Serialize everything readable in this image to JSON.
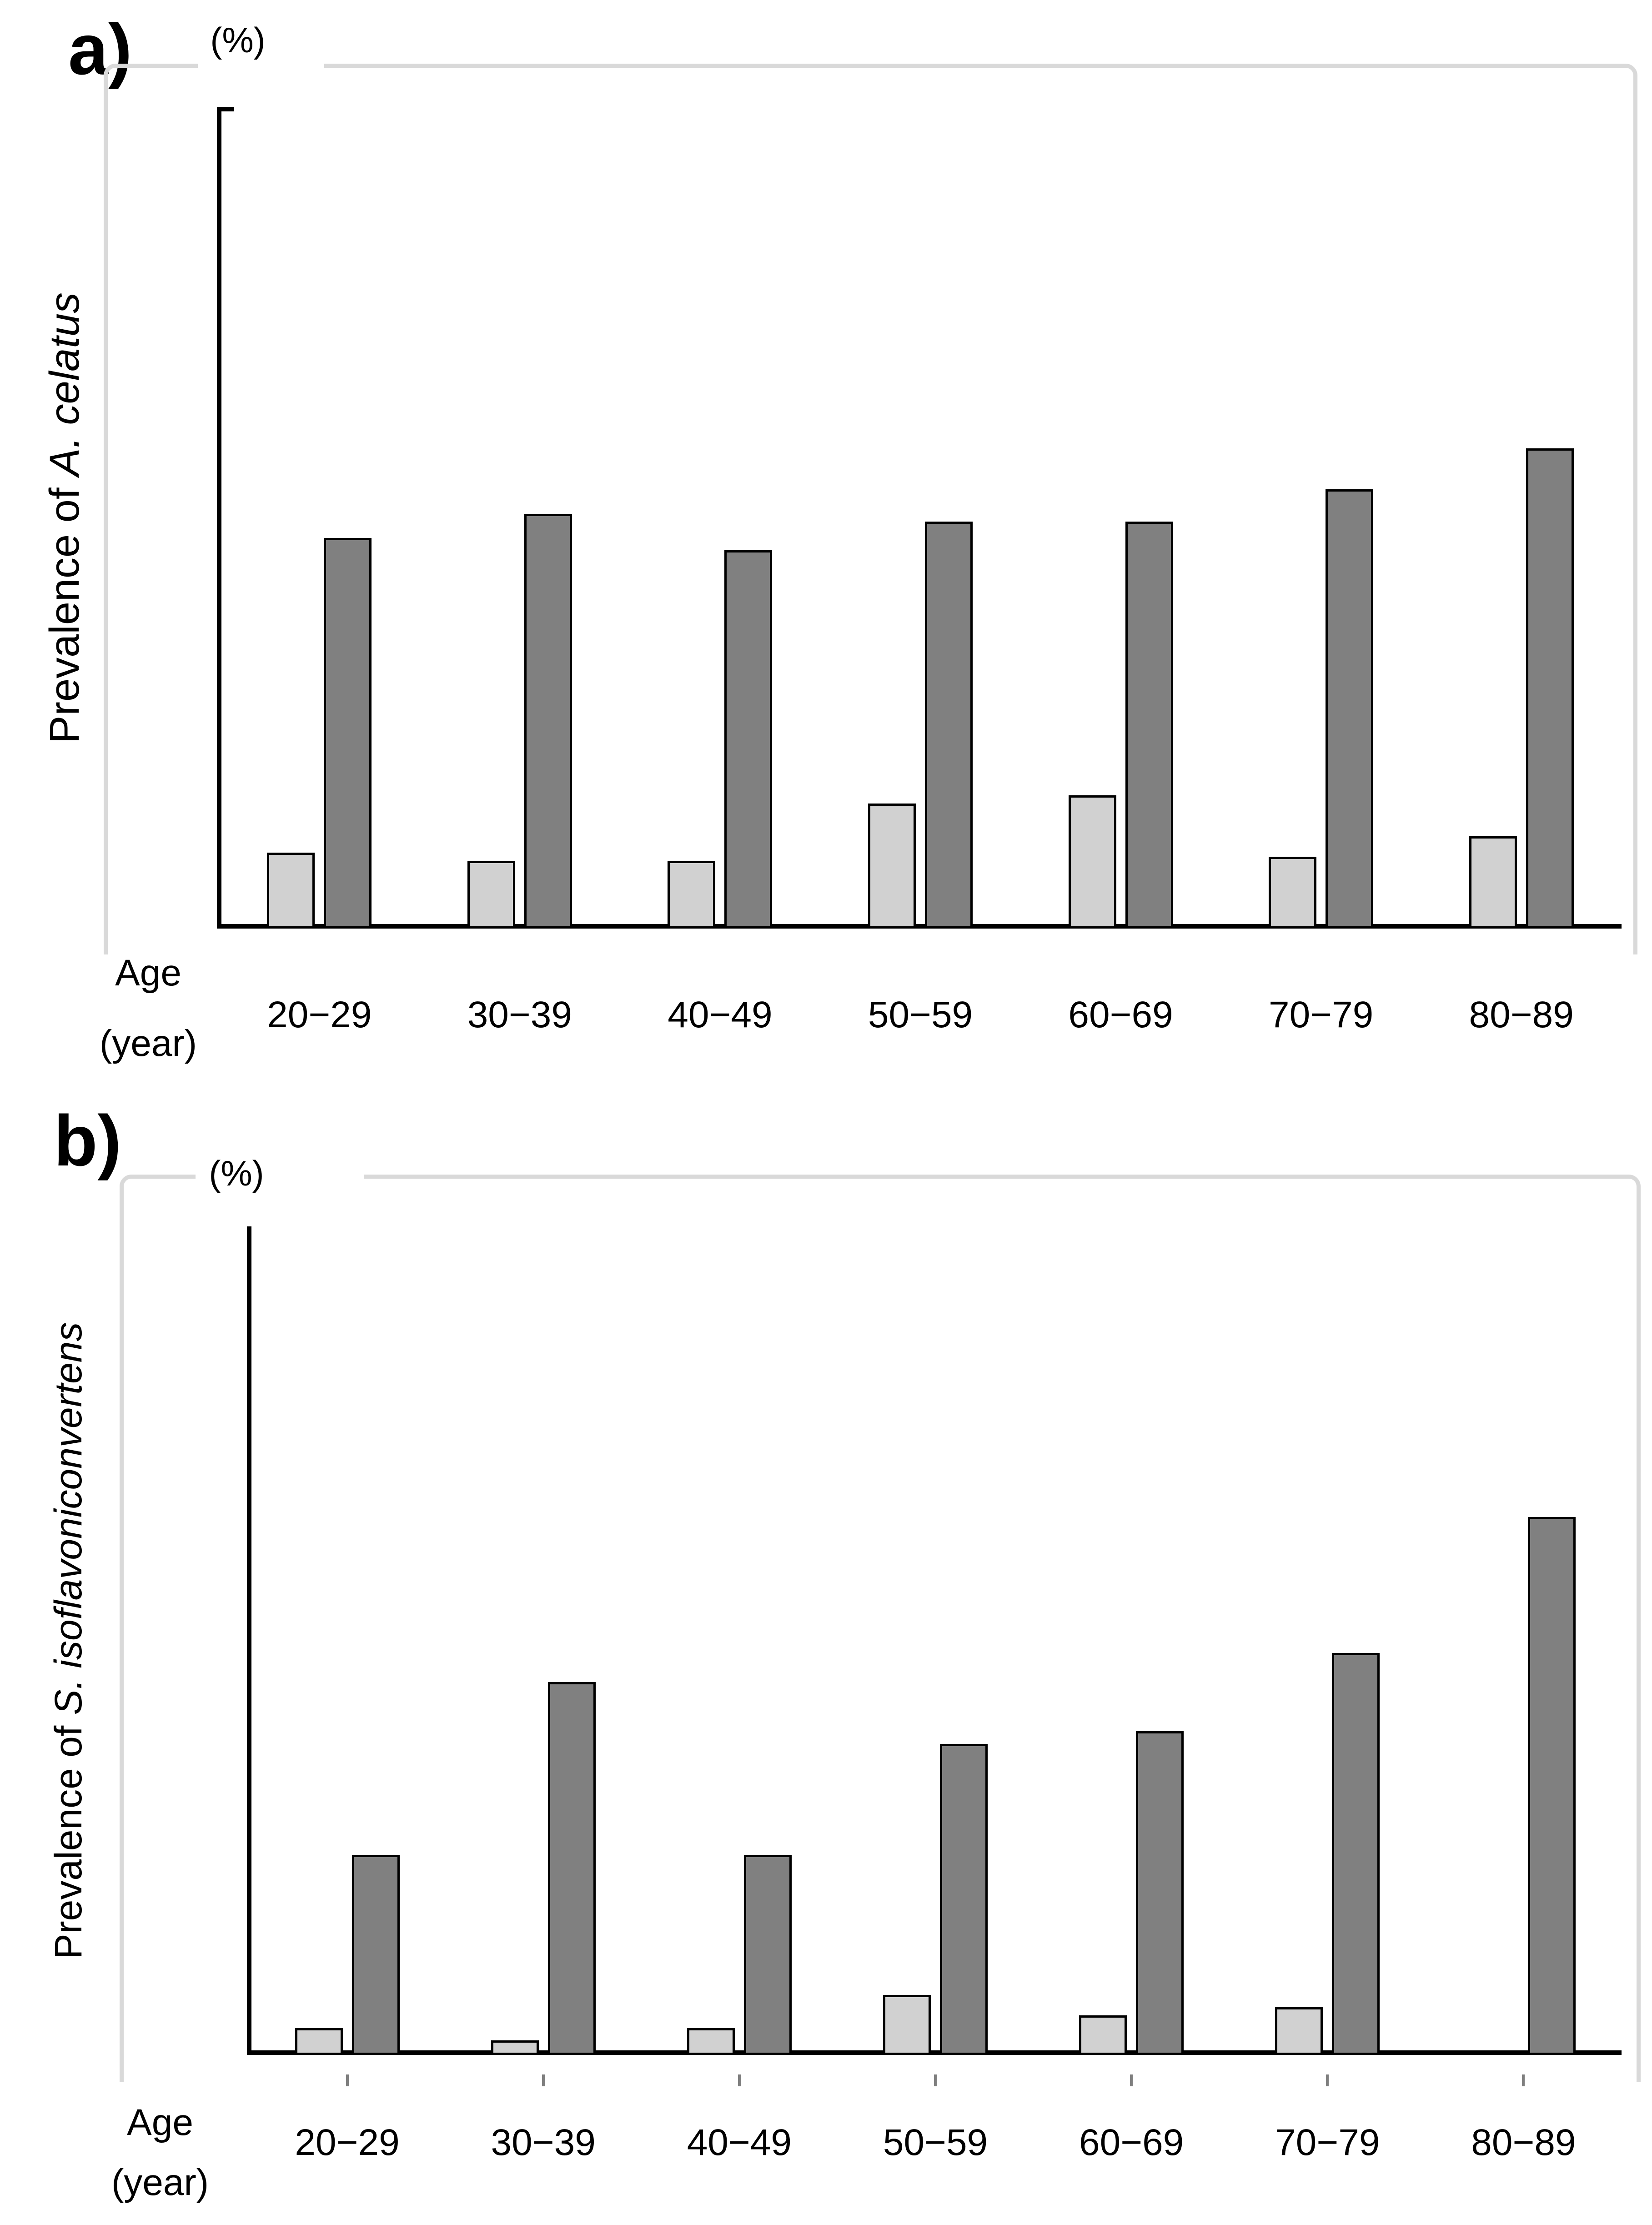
{
  "figure": {
    "panels": [
      {
        "panel_label": "a)",
        "unit_label": "(%)",
        "y_axis_title_prefix": "Prevalence of ",
        "y_axis_title_species": "A. celatus",
        "x_axis_title_line1": "Age",
        "x_axis_title_line2": "(year)"
      },
      {
        "panel_label": "b)",
        "unit_label": "(%)",
        "y_axis_title_prefix": "Prevalence of ",
        "y_axis_title_species": "S. isoflavoniconvertens",
        "x_axis_title_line1": "Age",
        "x_axis_title_line2": "(year)"
      }
    ]
  },
  "colors": {
    "light_bar_fill": "#d1d1d1",
    "dark_bar_fill": "#808080",
    "bar_border": "#000000",
    "axis": "#000000",
    "frame_border": "#d9d9d9"
  },
  "chart_data": [
    {
      "type": "bar",
      "title": "a) Prevalence of A. celatus",
      "ylabel": "Prevalence of A. celatus",
      "xlabel": "Age (year)",
      "unit": "%",
      "ylim": [
        0,
        100
      ],
      "y_ticks": [
        100,
        80,
        60,
        40,
        20,
        0
      ],
      "grid": false,
      "legend": "none",
      "categories": [
        "20−29",
        "30−39",
        "40−49",
        "50−59",
        "60−69",
        "70−79",
        "80−89"
      ],
      "series": [
        {
          "name": "light-gray-bars",
          "values": [
            9,
            8,
            8,
            15,
            16,
            8.5,
            11
          ]
        },
        {
          "name": "dark-gray-bars",
          "values": [
            47.5,
            50.5,
            46,
            49.5,
            49.5,
            53.5,
            58.5
          ]
        }
      ]
    },
    {
      "type": "bar",
      "title": "b) Prevalence of S. isoflavoniconvertens",
      "ylabel": "Prevalence of S. isoflavoniconvertens",
      "xlabel": "Age (year)",
      "unit": "%",
      "ylim": [
        0,
        100
      ],
      "y_ticks": [
        100,
        80,
        60,
        40,
        20,
        0
      ],
      "grid": false,
      "legend": "none",
      "categories": [
        "20−29",
        "30−39",
        "40−49",
        "50−59",
        "60−69",
        "70−79",
        "80−89"
      ],
      "series": [
        {
          "name": "light-gray-bars",
          "values": [
            3,
            1.5,
            3,
            7,
            4.5,
            5.5,
            0
          ]
        },
        {
          "name": "dark-gray-bars",
          "values": [
            24,
            45,
            24,
            37.5,
            39,
            48.5,
            65
          ]
        }
      ]
    }
  ]
}
